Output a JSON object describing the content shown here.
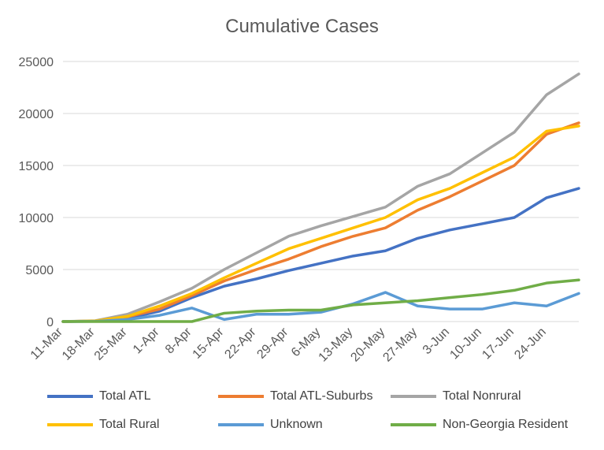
{
  "chart_data": {
    "type": "line",
    "title": "Cumulative Cases",
    "xlabel": "",
    "ylabel": "",
    "ylim": [
      0,
      25000
    ],
    "yticks": [
      "0",
      "5000",
      "10000",
      "15000",
      "20000",
      "25000"
    ],
    "x_tick_labels": [
      "11-Mar",
      "18-Mar",
      "25-Mar",
      "1-Apr",
      "8-Apr",
      "15-Apr",
      "22-Apr",
      "29-Apr",
      "6-May",
      "13-May",
      "20-May",
      "27-May",
      "3-Jun",
      "10-Jun",
      "17-Jun",
      "24-Jun"
    ],
    "x_days": [
      0,
      7,
      14,
      21,
      28,
      35,
      42,
      49,
      56,
      63,
      70,
      77,
      84,
      91,
      98,
      105,
      112
    ],
    "grid": "horizontal",
    "legend_position": "bottom",
    "series": [
      {
        "name": "Total ATL",
        "color": "#4472C4",
        "values": [
          0,
          30,
          300,
          1000,
          2300,
          3400,
          4100,
          4900,
          5600,
          6300,
          6800,
          8000,
          8800,
          9400,
          10000,
          11900,
          12800
        ]
      },
      {
        "name": "Total ATL-Suburbs",
        "color": "#ED7D31",
        "values": [
          0,
          50,
          450,
          1200,
          2500,
          3900,
          5000,
          6000,
          7200,
          8200,
          9000,
          10700,
          12000,
          13500,
          15000,
          18000,
          19100
        ]
      },
      {
        "name": "Total Nonrural",
        "color": "#A5A5A5",
        "values": [
          0,
          80,
          700,
          1900,
          3200,
          5000,
          6600,
          8200,
          9200,
          10100,
          11000,
          13000,
          14200,
          16200,
          18200,
          21800,
          23800
        ]
      },
      {
        "name": "Total Rural",
        "color": "#FFC000",
        "values": [
          0,
          60,
          500,
          1500,
          2700,
          4200,
          5600,
          7000,
          8000,
          9000,
          10000,
          11700,
          12800,
          14300,
          15800,
          18300,
          18800
        ]
      },
      {
        "name": "Unknown",
        "color": "#5B9BD5",
        "values": [
          0,
          20,
          200,
          600,
          1300,
          200,
          700,
          700,
          900,
          1700,
          2800,
          1500,
          1200,
          1200,
          1800,
          1500,
          2700
        ]
      },
      {
        "name": "Non-Georgia Resident",
        "color": "#70AD47",
        "values": [
          0,
          0,
          0,
          0,
          0,
          800,
          1000,
          1100,
          1100,
          1600,
          1800,
          2000,
          2300,
          2600,
          3000,
          3700,
          4000
        ]
      }
    ]
  }
}
